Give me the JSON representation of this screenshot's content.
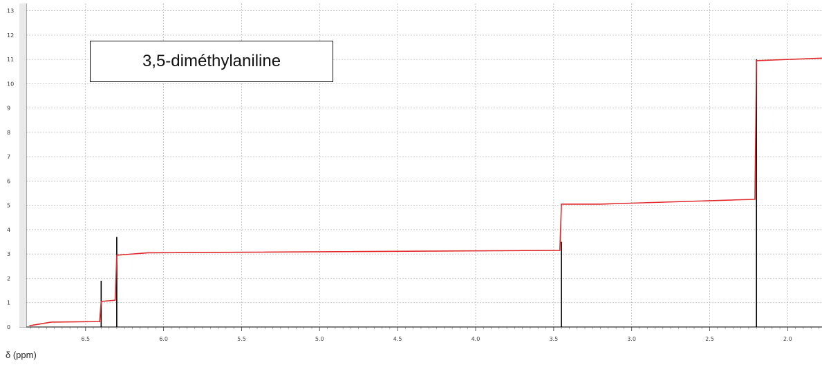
{
  "chart_data": {
    "type": "line",
    "title": "3,5-diméthylaniline",
    "xlabel": "δ (ppm)",
    "ylabel": "",
    "xlim": [
      6.88,
      1.78
    ],
    "ylim": [
      0,
      13.3
    ],
    "x_reversed": true,
    "grid": true,
    "x_ticks": [
      "6.5",
      "6.0",
      "5.5",
      "5.0",
      "4.5",
      "4.0",
      "3.5",
      "3.0",
      "2.5",
      "2.0"
    ],
    "y_ticks": [
      "0",
      "1",
      "2",
      "3",
      "4",
      "5",
      "6",
      "7",
      "8",
      "9",
      "10",
      "11",
      "12",
      "13"
    ],
    "series": [
      {
        "role": "peaks",
        "color": "#000000",
        "points": [
          {
            "x": 6.4,
            "y": 1.9
          },
          {
            "x": 6.3,
            "y": 3.7
          },
          {
            "x": 3.45,
            "y": 3.5
          },
          {
            "x": 2.2,
            "y": 11.0
          }
        ]
      },
      {
        "role": "integration",
        "color": "#e0282a",
        "points": [
          {
            "x": 6.86,
            "y": 0.05
          },
          {
            "x": 6.72,
            "y": 0.2
          },
          {
            "x": 6.41,
            "y": 0.22
          },
          {
            "x": 6.4,
            "y": 1.05
          },
          {
            "x": 6.31,
            "y": 1.1
          },
          {
            "x": 6.3,
            "y": 2.95
          },
          {
            "x": 6.1,
            "y": 3.05
          },
          {
            "x": 3.46,
            "y": 3.15
          },
          {
            "x": 3.45,
            "y": 5.05
          },
          {
            "x": 3.2,
            "y": 5.05
          },
          {
            "x": 2.21,
            "y": 5.25
          },
          {
            "x": 2.2,
            "y": 10.95
          },
          {
            "x": 1.78,
            "y": 11.05
          }
        ]
      }
    ]
  }
}
